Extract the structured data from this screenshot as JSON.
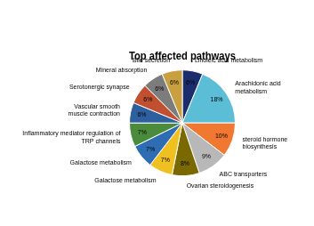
{
  "chart_data": {
    "type": "pie",
    "title": "Top affected pathways",
    "categories": [
      "Linoleic acid metabolism",
      "Arachidonic acid\nmetabolism",
      "steroid hormone\nbiosynthesis",
      "ABC transporters",
      "Ovarian steroidogenesis",
      "Galactose metabolism",
      "Galactose metabolism ",
      "Inflammatory mediator regulation of\nTRP channels",
      "Vascular smooth\nmuscle contraction",
      "Serotonergic synapse",
      "Mineral absorption",
      "Bile secretion"
    ],
    "values": [
      6,
      18,
      10,
      9,
      8,
      7,
      7,
      7,
      6,
      6,
      6,
      6
    ],
    "value_labels": [
      "6%",
      "18%",
      "10%",
      "9%",
      "8%",
      "7%",
      "7%",
      "7%",
      "6%",
      "6%",
      "6%",
      "6%"
    ],
    "colors": [
      "#1c2d6e",
      "#5bbdd6",
      "#f07830",
      "#b8b8b8",
      "#7a6800",
      "#f0c020",
      "#2e6db4",
      "#4a8c3c",
      "#2e5f9e",
      "#c05030",
      "#7c7c7c",
      "#c8a040"
    ],
    "data_labels": true
  }
}
